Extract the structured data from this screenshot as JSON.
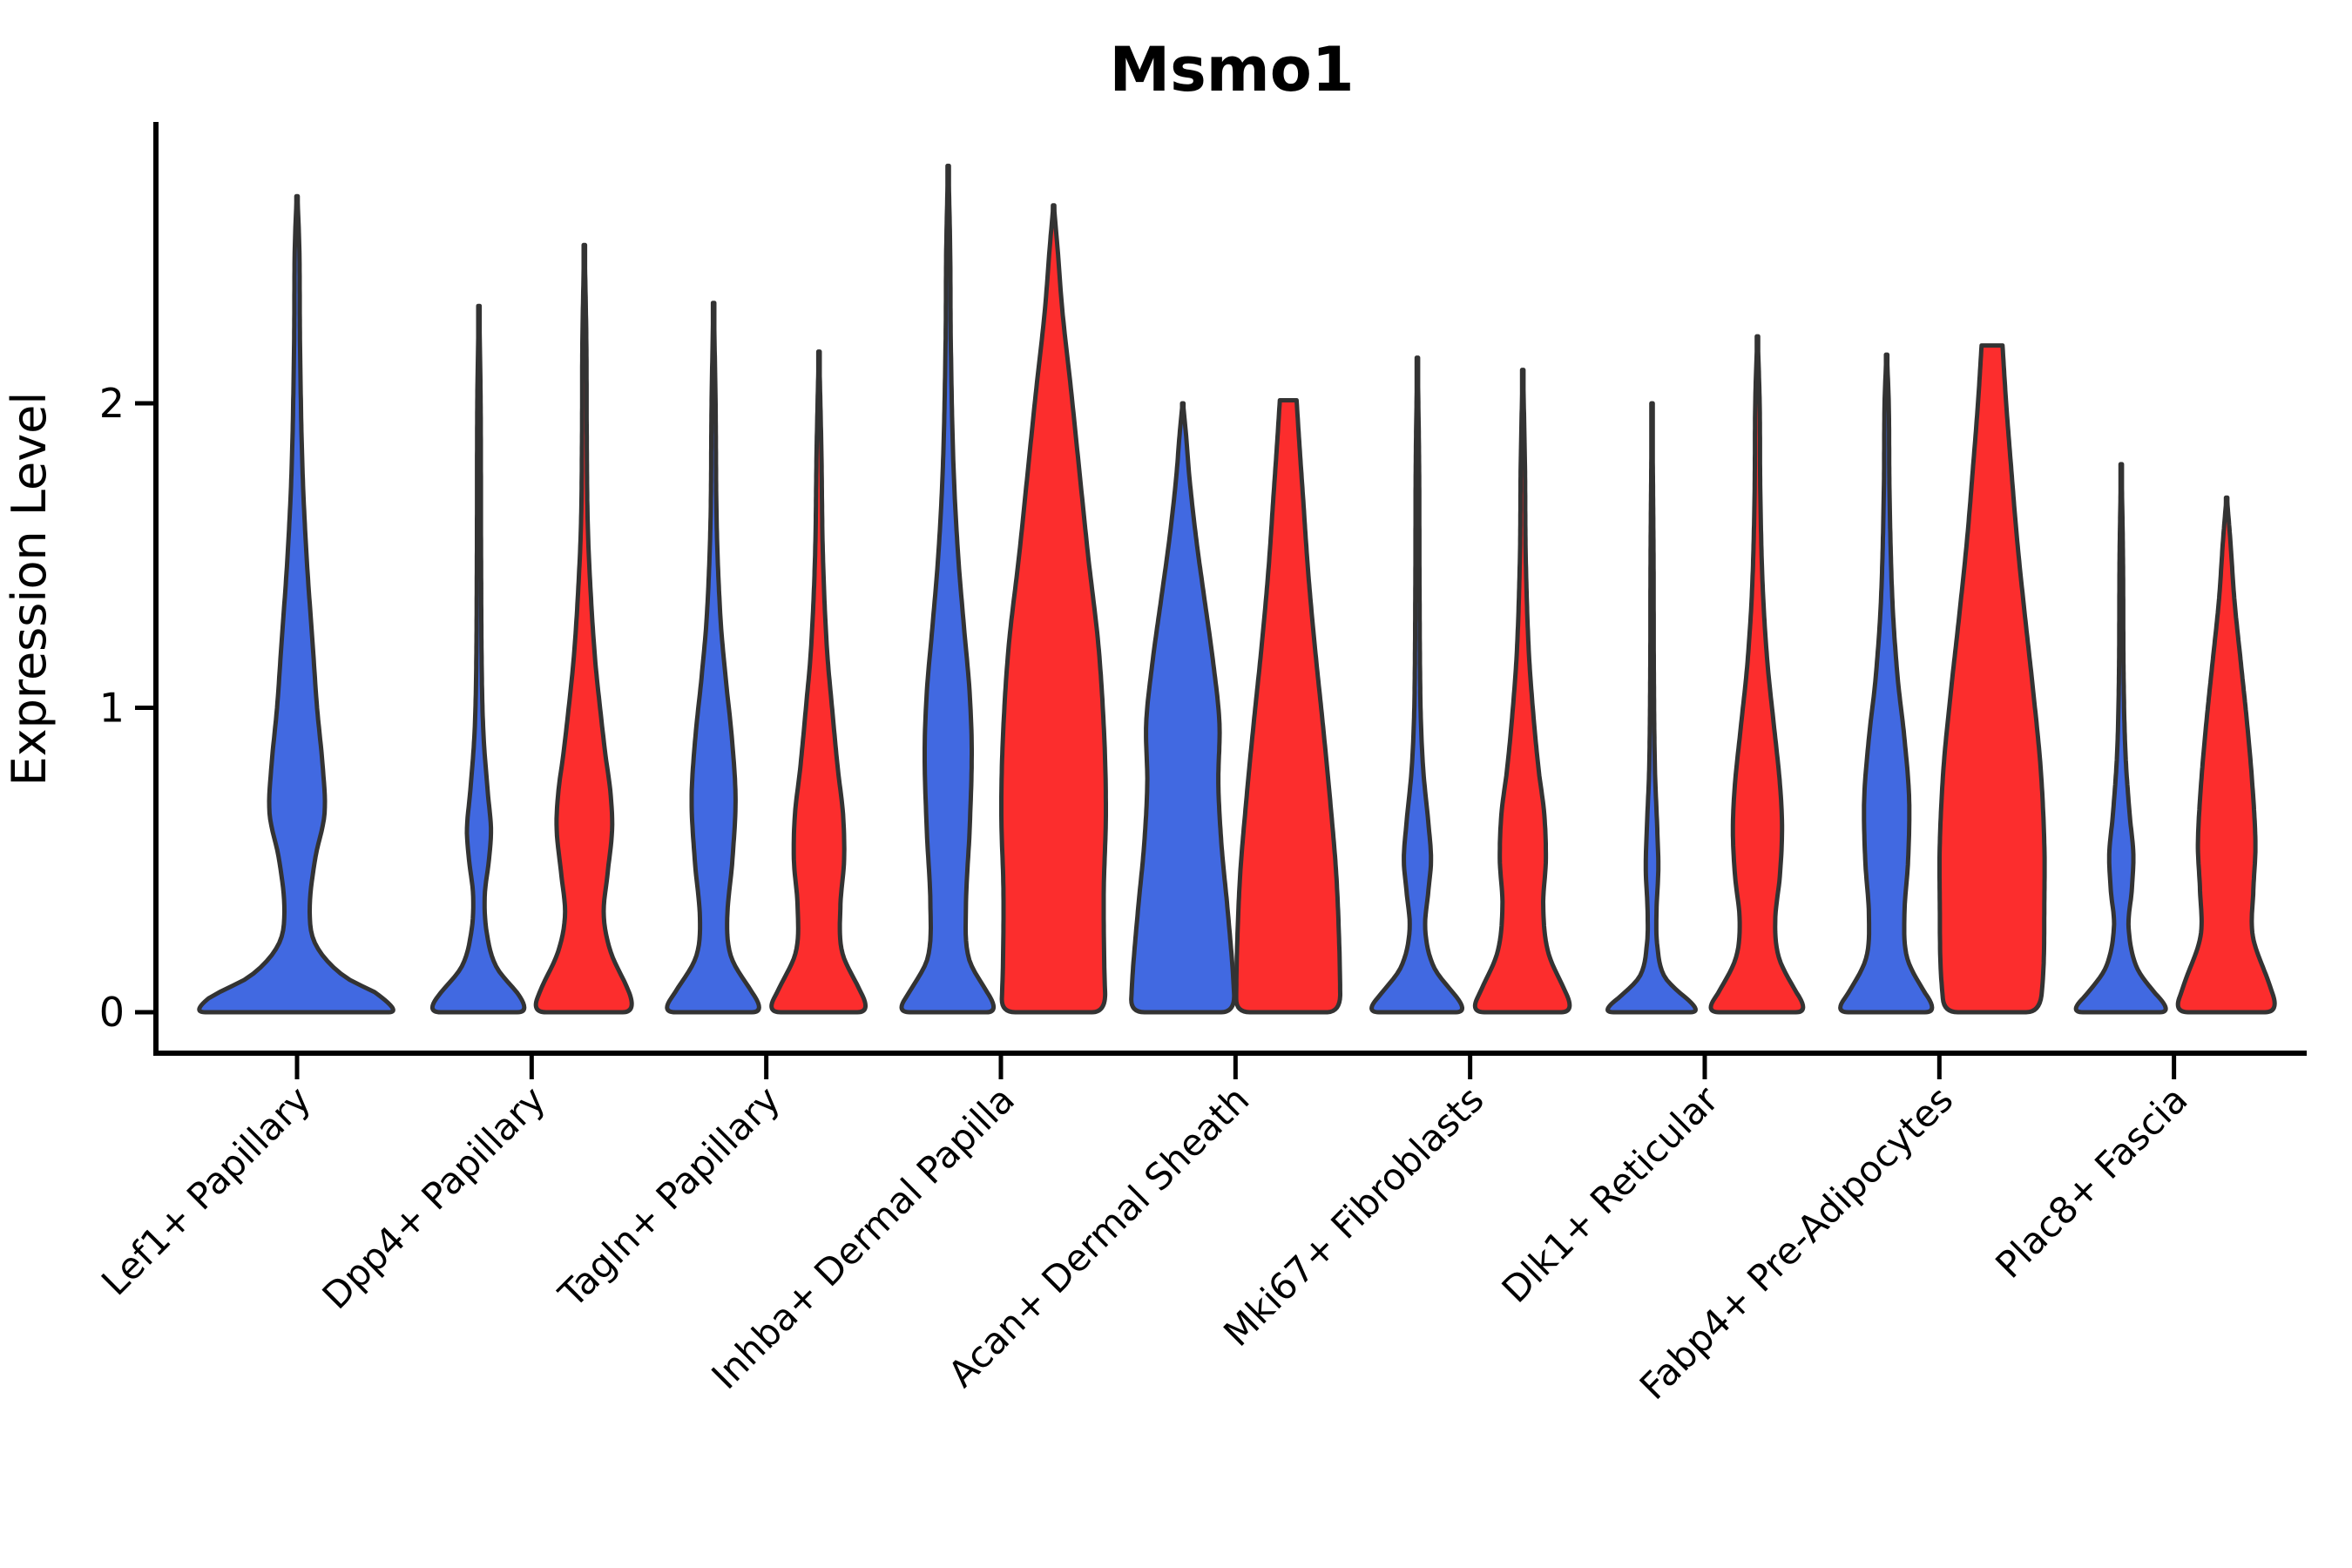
{
  "figure": {
    "title": "Msmo1",
    "ylabel": "Expression Level"
  },
  "colors": {
    "blue": "#4169E1",
    "red": "#FC2D2D",
    "outline": "#333333",
    "axis": "#000000",
    "background": "#ffffff"
  },
  "chart_data": {
    "type": "violin",
    "title": "Msmo1",
    "xlabel": "",
    "ylabel": "Expression Level",
    "ylim": [
      -0.13,
      2.9
    ],
    "yticks": [
      "0",
      "1",
      "2"
    ],
    "grid": false,
    "legend": "none",
    "groups": [
      "blue",
      "red"
    ],
    "categories": [
      "Lef1+ Papillary",
      "Dpp4+ Papillary",
      "Tagln+ Papillary",
      "Inhba+ Dermal Papilla",
      "Acan+ Dermal Sheath",
      "Mki67+ Fibroblasts",
      "Dlk1+ Reticular",
      "Fabp4+ Pre-Adipocytes",
      "Plac8+ Fascia"
    ],
    "violins": [
      {
        "category_index": 0,
        "category": "Lef1+ Papillary",
        "group": "blue",
        "span": "full",
        "max_value": 2.68,
        "flat_top": false,
        "profile": [
          [
            0,
            1.0
          ],
          [
            0.05,
            0.82
          ],
          [
            0.12,
            0.44
          ],
          [
            0.22,
            0.18
          ],
          [
            0.33,
            0.12
          ],
          [
            0.5,
            0.17
          ],
          [
            0.65,
            0.26
          ],
          [
            0.8,
            0.245
          ],
          [
            1.0,
            0.19
          ],
          [
            1.2,
            0.15
          ],
          [
            1.5,
            0.09
          ],
          [
            1.8,
            0.05
          ],
          [
            2.2,
            0.028
          ],
          [
            2.5,
            0.022
          ],
          [
            2.68,
            0.004
          ]
        ]
      },
      {
        "category_index": 1,
        "category": "Dpp4+ Papillary",
        "group": "blue",
        "span": "left",
        "max_value": 2.32,
        "flat_top": false,
        "profile": [
          [
            0,
            1.0
          ],
          [
            0.06,
            0.75
          ],
          [
            0.15,
            0.33
          ],
          [
            0.26,
            0.15
          ],
          [
            0.38,
            0.11
          ],
          [
            0.5,
            0.19
          ],
          [
            0.6,
            0.23
          ],
          [
            0.72,
            0.17
          ],
          [
            0.9,
            0.09
          ],
          [
            1.1,
            0.055
          ],
          [
            1.5,
            0.04
          ],
          [
            2.0,
            0.032
          ],
          [
            2.32,
            0.004
          ]
        ]
      },
      {
        "category_index": 1,
        "category": "Dpp4+ Papillary",
        "group": "red",
        "span": "right",
        "max_value": 2.52,
        "flat_top": false,
        "profile": [
          [
            0,
            1.0
          ],
          [
            0.08,
            0.82
          ],
          [
            0.2,
            0.5
          ],
          [
            0.32,
            0.37
          ],
          [
            0.45,
            0.44
          ],
          [
            0.6,
            0.53
          ],
          [
            0.72,
            0.5
          ],
          [
            0.85,
            0.4
          ],
          [
            1.0,
            0.3
          ],
          [
            1.15,
            0.21
          ],
          [
            1.35,
            0.13
          ],
          [
            1.6,
            0.065
          ],
          [
            1.9,
            0.045
          ],
          [
            2.2,
            0.038
          ],
          [
            2.52,
            0.004
          ]
        ]
      },
      {
        "category_index": 2,
        "category": "Tagln+ Papillary",
        "group": "blue",
        "span": "left",
        "max_value": 2.33,
        "flat_top": false,
        "profile": [
          [
            0,
            1.0
          ],
          [
            0.07,
            0.72
          ],
          [
            0.18,
            0.34
          ],
          [
            0.3,
            0.26
          ],
          [
            0.5,
            0.36
          ],
          [
            0.7,
            0.42
          ],
          [
            0.9,
            0.35
          ],
          [
            1.1,
            0.23
          ],
          [
            1.3,
            0.13
          ],
          [
            1.6,
            0.06
          ],
          [
            2.0,
            0.038
          ],
          [
            2.33,
            0.004
          ]
        ]
      },
      {
        "category_index": 2,
        "category": "Tagln+ Papillary",
        "group": "red",
        "span": "right",
        "max_value": 2.17,
        "flat_top": false,
        "profile": [
          [
            0,
            1.0
          ],
          [
            0.08,
            0.76
          ],
          [
            0.2,
            0.44
          ],
          [
            0.35,
            0.41
          ],
          [
            0.5,
            0.48
          ],
          [
            0.65,
            0.46
          ],
          [
            0.8,
            0.36
          ],
          [
            1.0,
            0.25
          ],
          [
            1.2,
            0.15
          ],
          [
            1.5,
            0.075
          ],
          [
            1.85,
            0.045
          ],
          [
            2.17,
            0.004
          ]
        ]
      },
      {
        "category_index": 3,
        "category": "Inhba+ Dermal Papilla",
        "group": "blue",
        "span": "left",
        "max_value": 2.78,
        "flat_top": false,
        "profile": [
          [
            0,
            1.0
          ],
          [
            0.07,
            0.73
          ],
          [
            0.18,
            0.39
          ],
          [
            0.35,
            0.34
          ],
          [
            0.6,
            0.41
          ],
          [
            0.85,
            0.45
          ],
          [
            1.05,
            0.41
          ],
          [
            1.25,
            0.31
          ],
          [
            1.5,
            0.19
          ],
          [
            1.8,
            0.1
          ],
          [
            2.2,
            0.05
          ],
          [
            2.5,
            0.038
          ],
          [
            2.78,
            0.004
          ]
        ]
      },
      {
        "category_index": 3,
        "category": "Inhba+ Dermal Papilla",
        "group": "red",
        "span": "right",
        "max_value": 2.65,
        "flat_top": false,
        "profile": [
          [
            0,
            1.0
          ],
          [
            0.15,
            0.97
          ],
          [
            0.4,
            0.96
          ],
          [
            0.65,
            1.0
          ],
          [
            0.9,
            0.97
          ],
          [
            1.2,
            0.86
          ],
          [
            1.5,
            0.66
          ],
          [
            1.8,
            0.48
          ],
          [
            2.05,
            0.33
          ],
          [
            2.3,
            0.17
          ],
          [
            2.5,
            0.08
          ],
          [
            2.65,
            0.005
          ]
        ]
      },
      {
        "category_index": 4,
        "category": "Acan+ Dermal Sheath",
        "group": "blue",
        "span": "left",
        "max_value": 2.0,
        "flat_top": false,
        "profile": [
          [
            0,
            1.0
          ],
          [
            0.15,
            0.95
          ],
          [
            0.35,
            0.85
          ],
          [
            0.55,
            0.74
          ],
          [
            0.75,
            0.68
          ],
          [
            0.95,
            0.7
          ],
          [
            1.15,
            0.58
          ],
          [
            1.35,
            0.42
          ],
          [
            1.55,
            0.26
          ],
          [
            1.75,
            0.13
          ],
          [
            1.9,
            0.06
          ],
          [
            2.0,
            0.004
          ]
        ]
      },
      {
        "category_index": 4,
        "category": "Acan+ Dermal Sheath",
        "group": "red",
        "span": "right",
        "max_value": 2.01,
        "flat_top": true,
        "profile": [
          [
            0,
            1.0
          ],
          [
            0.2,
            0.98
          ],
          [
            0.45,
            0.92
          ],
          [
            0.7,
            0.8
          ],
          [
            0.95,
            0.66
          ],
          [
            1.2,
            0.51
          ],
          [
            1.45,
            0.38
          ],
          [
            1.7,
            0.28
          ],
          [
            1.85,
            0.22
          ],
          [
            2.01,
            0.16
          ]
        ]
      },
      {
        "category_index": 5,
        "category": "Mki67+ Fibroblasts",
        "group": "blue",
        "span": "left",
        "max_value": 2.15,
        "flat_top": false,
        "profile": [
          [
            0,
            1.0
          ],
          [
            0.06,
            0.7
          ],
          [
            0.15,
            0.31
          ],
          [
            0.27,
            0.15
          ],
          [
            0.4,
            0.21
          ],
          [
            0.5,
            0.26
          ],
          [
            0.62,
            0.21
          ],
          [
            0.8,
            0.11
          ],
          [
            1.0,
            0.06
          ],
          [
            1.4,
            0.04
          ],
          [
            1.8,
            0.032
          ],
          [
            2.15,
            0.004
          ]
        ]
      },
      {
        "category_index": 5,
        "category": "Mki67+ Fibroblasts",
        "group": "red",
        "span": "right",
        "max_value": 2.11,
        "flat_top": false,
        "profile": [
          [
            0,
            1.0
          ],
          [
            0.08,
            0.78
          ],
          [
            0.2,
            0.48
          ],
          [
            0.35,
            0.39
          ],
          [
            0.5,
            0.44
          ],
          [
            0.65,
            0.41
          ],
          [
            0.8,
            0.3
          ],
          [
            1.0,
            0.19
          ],
          [
            1.2,
            0.11
          ],
          [
            1.5,
            0.055
          ],
          [
            1.8,
            0.04
          ],
          [
            2.11,
            0.004
          ]
        ]
      },
      {
        "category_index": 6,
        "category": "Dlk1+ Reticular",
        "group": "blue",
        "span": "left",
        "max_value": 2.0,
        "flat_top": false,
        "profile": [
          [
            0,
            1.0
          ],
          [
            0.05,
            0.62
          ],
          [
            0.12,
            0.23
          ],
          [
            0.22,
            0.1
          ],
          [
            0.33,
            0.085
          ],
          [
            0.47,
            0.12
          ],
          [
            0.6,
            0.1
          ],
          [
            0.8,
            0.055
          ],
          [
            1.1,
            0.035
          ],
          [
            1.5,
            0.028
          ],
          [
            2.0,
            0.004
          ]
        ]
      },
      {
        "category_index": 6,
        "category": "Dlk1+ Reticular",
        "group": "red",
        "span": "right",
        "max_value": 2.22,
        "flat_top": false,
        "profile": [
          [
            0,
            1.0
          ],
          [
            0.07,
            0.73
          ],
          [
            0.18,
            0.41
          ],
          [
            0.3,
            0.34
          ],
          [
            0.45,
            0.43
          ],
          [
            0.6,
            0.47
          ],
          [
            0.75,
            0.43
          ],
          [
            0.95,
            0.31
          ],
          [
            1.15,
            0.19
          ],
          [
            1.4,
            0.1
          ],
          [
            1.7,
            0.055
          ],
          [
            2.0,
            0.042
          ],
          [
            2.22,
            0.004
          ]
        ]
      },
      {
        "category_index": 7,
        "category": "Fabp4+ Pre-Adipocytes",
        "group": "blue",
        "span": "left",
        "max_value": 2.16,
        "flat_top": false,
        "profile": [
          [
            0,
            1.0
          ],
          [
            0.07,
            0.71
          ],
          [
            0.18,
            0.39
          ],
          [
            0.32,
            0.34
          ],
          [
            0.5,
            0.41
          ],
          [
            0.7,
            0.43
          ],
          [
            0.9,
            0.34
          ],
          [
            1.1,
            0.21
          ],
          [
            1.35,
            0.11
          ],
          [
            1.7,
            0.055
          ],
          [
            2.0,
            0.04
          ],
          [
            2.16,
            0.004
          ]
        ]
      },
      {
        "category_index": 7,
        "category": "Fabp4+ Pre-Adipocytes",
        "group": "red",
        "span": "right",
        "max_value": 2.19,
        "flat_top": true,
        "profile": [
          [
            0,
            0.92
          ],
          [
            0.15,
            0.985
          ],
          [
            0.35,
            1.0
          ],
          [
            0.55,
            1.0
          ],
          [
            0.8,
            0.93
          ],
          [
            1.05,
            0.79
          ],
          [
            1.3,
            0.63
          ],
          [
            1.55,
            0.48
          ],
          [
            1.8,
            0.36
          ],
          [
            2.0,
            0.27
          ],
          [
            2.19,
            0.2
          ]
        ]
      },
      {
        "category_index": 8,
        "category": "Plac8+ Fascia",
        "group": "blue",
        "span": "left",
        "max_value": 1.8,
        "flat_top": false,
        "profile": [
          [
            0,
            1.0
          ],
          [
            0.06,
            0.66
          ],
          [
            0.15,
            0.29
          ],
          [
            0.28,
            0.14
          ],
          [
            0.4,
            0.2
          ],
          [
            0.52,
            0.23
          ],
          [
            0.65,
            0.16
          ],
          [
            0.85,
            0.08
          ],
          [
            1.1,
            0.045
          ],
          [
            1.5,
            0.032
          ],
          [
            1.8,
            0.004
          ]
        ]
      },
      {
        "category_index": 8,
        "category": "Plac8+ Fascia",
        "group": "red",
        "span": "right",
        "max_value": 1.69,
        "flat_top": false,
        "profile": [
          [
            0,
            1.0
          ],
          [
            0.1,
            0.8
          ],
          [
            0.25,
            0.5
          ],
          [
            0.4,
            0.51
          ],
          [
            0.55,
            0.55
          ],
          [
            0.75,
            0.49
          ],
          [
            0.95,
            0.39
          ],
          [
            1.15,
            0.27
          ],
          [
            1.35,
            0.15
          ],
          [
            1.55,
            0.07
          ],
          [
            1.69,
            0.004
          ]
        ]
      }
    ]
  }
}
